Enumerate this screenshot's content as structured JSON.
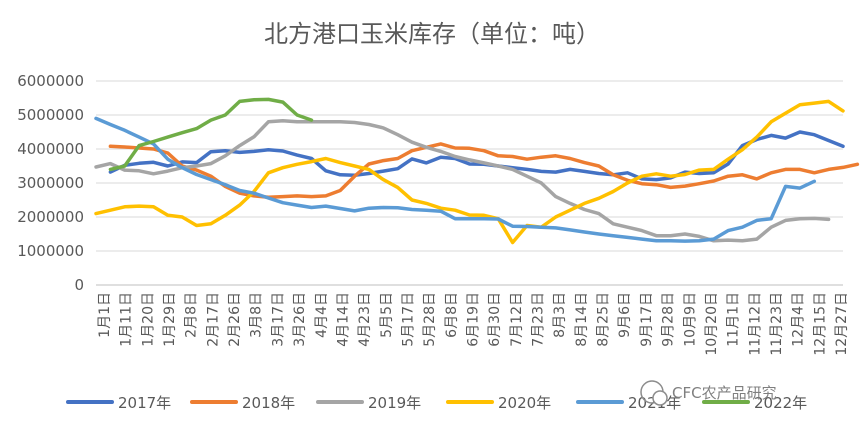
{
  "chart_data": {
    "type": "line",
    "title": "北方港口玉米库存（单位：吨）",
    "ylim": [
      0,
      6000000
    ],
    "y_ticks": [
      0,
      1000000,
      2000000,
      3000000,
      4000000,
      5000000,
      6000000
    ],
    "grid": true,
    "legend_position": "bottom",
    "x_labels": [
      "1月1日",
      "1月11日",
      "1月20日",
      "1月29日",
      "2月8日",
      "2月17日",
      "2月26日",
      "3月8日",
      "3月17日",
      "3月26日",
      "4月4日",
      "4月14日",
      "4月23日",
      "5月5日",
      "5月17日",
      "5月28日",
      "6月8日",
      "6月19日",
      "6月30日",
      "7月12日",
      "7月23日",
      "8月3日",
      "8月14日",
      "8月25日",
      "9月6日",
      "9月17日",
      "9月28日",
      "10月9日",
      "10月20日",
      "11月1日",
      "11月12日",
      "11月23日",
      "12月4日",
      "12月15日",
      "12月27日"
    ],
    "colors": {
      "2017年": "#4472C4",
      "2018年": "#ED7D31",
      "2019年": "#A5A5A5",
      "2020年": "#FFC000",
      "2021年": "#5B9BD5",
      "2022年": "#70AD47"
    },
    "series": [
      {
        "name": "2017年",
        "values": [
          3320000,
          3520000,
          3580000,
          3610000,
          3500000,
          3620000,
          3600000,
          3920000,
          3950000,
          3900000,
          3930000,
          3980000,
          3940000,
          3820000,
          3720000,
          3360000,
          3240000,
          3230000,
          3280000,
          3350000,
          3420000,
          3710000,
          3590000,
          3760000,
          3720000,
          3560000,
          3550000,
          3500000,
          3450000,
          3400000,
          3340000,
          3320000,
          3400000,
          3340000,
          3280000,
          3240000,
          3300000,
          3120000,
          3100000,
          3150000,
          3320000,
          3280000,
          3300000,
          3560000,
          4100000,
          4280000,
          4400000,
          4320000,
          4500000,
          4420000,
          4250000,
          4080000
        ],
        "x_start": 1
      },
      {
        "name": "2018年",
        "values": [
          4080000,
          4060000,
          4030000,
          4000000,
          3880000,
          3500000,
          3380000,
          3200000,
          2900000,
          2700000,
          2620000,
          2580000,
          2600000,
          2620000,
          2600000,
          2620000,
          2780000,
          3200000,
          3560000,
          3660000,
          3720000,
          3950000,
          4050000,
          4150000,
          4030000,
          4020000,
          3950000,
          3800000,
          3780000,
          3700000,
          3760000,
          3800000,
          3720000,
          3600000,
          3500000,
          3240000,
          3080000,
          2980000,
          2950000,
          2870000,
          2910000,
          2980000,
          3060000,
          3200000,
          3240000,
          3120000,
          3300000,
          3400000,
          3400000,
          3300000,
          3400000,
          3460000,
          3550000
        ],
        "x_start": 1
      },
      {
        "name": "2019年",
        "values": [
          3470000,
          3570000,
          3380000,
          3360000,
          3270000,
          3350000,
          3450000,
          3500000,
          3570000,
          3800000,
          4100000,
          4360000,
          4800000,
          4830000,
          4800000,
          4800000,
          4800000,
          4800000,
          4780000,
          4720000,
          4620000,
          4420000,
          4200000,
          4050000,
          3930000,
          3780000,
          3680000,
          3590000,
          3500000,
          3400000,
          3200000,
          3000000,
          2600000,
          2400000,
          2220000,
          2100000,
          1800000,
          1700000,
          1600000,
          1450000,
          1450000,
          1500000,
          1430000,
          1300000,
          1320000,
          1300000,
          1350000,
          1700000,
          1900000,
          1950000,
          1960000,
          1930000
        ],
        "x_start": 0
      },
      {
        "name": "2020年",
        "values": [
          2100000,
          2200000,
          2300000,
          2320000,
          2300000,
          2050000,
          2000000,
          1750000,
          1800000,
          2050000,
          2350000,
          2750000,
          3300000,
          3450000,
          3550000,
          3630000,
          3720000,
          3600000,
          3500000,
          3400000,
          3100000,
          2870000,
          2500000,
          2400000,
          2260000,
          2200000,
          2060000,
          2050000,
          1950000,
          1250000,
          1750000,
          1700000,
          2000000,
          2200000,
          2400000,
          2550000,
          2750000,
          3000000,
          3200000,
          3270000,
          3200000,
          3250000,
          3380000,
          3400000,
          3700000,
          3980000,
          4350000,
          4800000,
          5050000,
          5300000,
          5350000,
          5400000,
          5120000
        ],
        "x_start": 0
      },
      {
        "name": "2021年",
        "values": [
          4900000,
          4720000,
          4550000,
          4350000,
          4150000,
          3700000,
          3450000,
          3250000,
          3100000,
          2950000,
          2780000,
          2700000,
          2560000,
          2420000,
          2350000,
          2280000,
          2320000,
          2250000,
          2180000,
          2260000,
          2280000,
          2270000,
          2220000,
          2200000,
          2170000,
          1950000,
          1950000,
          1950000,
          1940000,
          1730000,
          1720000,
          1700000,
          1680000,
          1620000,
          1560000,
          1500000,
          1450000,
          1400000,
          1350000,
          1300000,
          1300000,
          1290000,
          1300000,
          1350000,
          1600000,
          1700000,
          1900000,
          1950000,
          2900000,
          2850000,
          3050000
        ],
        "x_start": 0
      },
      {
        "name": "2022年",
        "values": [
          3400000,
          3500000,
          4100000,
          4220000,
          4350000,
          4480000,
          4600000,
          4850000,
          5000000,
          5400000,
          5450000,
          5460000,
          5380000,
          5000000,
          4850000
        ],
        "x_start": 1
      }
    ]
  },
  "legend": {
    "items": [
      "2017年",
      "2018年",
      "2019年",
      "2020年",
      "2021年",
      "2022年"
    ]
  },
  "watermark": {
    "text": "CFC农产品研究"
  }
}
